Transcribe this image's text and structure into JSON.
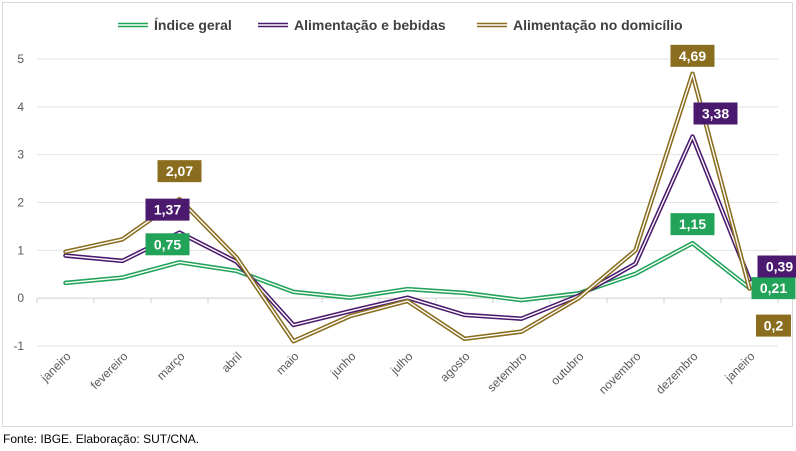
{
  "chart_data": {
    "type": "line",
    "title": "",
    "xlabel": "",
    "ylabel": "",
    "ylim": [
      -1,
      5
    ],
    "yticks": [
      "-1",
      "0",
      "1",
      "2",
      "3",
      "4",
      "5"
    ],
    "categories": [
      "janeiro",
      "fevereiro",
      "março",
      "abril",
      "maio",
      "junho",
      "julho",
      "agosto",
      "setembro",
      "outubro",
      "novembro",
      "dezembro",
      "janeiro"
    ],
    "legend_position": "top",
    "series": [
      {
        "name": "Índice geral",
        "color": "#22a35a",
        "values": [
          0.32,
          0.43,
          0.75,
          0.57,
          0.13,
          0.01,
          0.19,
          0.11,
          -0.04,
          0.1,
          0.51,
          1.15,
          0.21
        ],
        "labels": [
          {
            "index": 2,
            "text": "0,75"
          },
          {
            "index": 11,
            "text": "1,15"
          },
          {
            "index": 12,
            "text": "0,21"
          }
        ]
      },
      {
        "name": "Alimentação e bebidas",
        "color": "#4b1a6e",
        "values": [
          0.89,
          0.78,
          1.37,
          0.76,
          -0.56,
          -0.27,
          0.01,
          -0.35,
          -0.43,
          0.05,
          0.72,
          3.38,
          0.39
        ],
        "labels": [
          {
            "index": 2,
            "text": "1,37"
          },
          {
            "index": 11,
            "text": "3,38"
          },
          {
            "index": 12,
            "text": "0,39"
          }
        ]
      },
      {
        "name": "Alimentação no domicílio",
        "color": "#8a6d1e",
        "values": [
          0.97,
          1.23,
          2.07,
          0.85,
          -0.9,
          -0.37,
          -0.06,
          -0.85,
          -0.7,
          0.0,
          1.0,
          4.69,
          0.2
        ],
        "labels": [
          {
            "index": 2,
            "text": "2,07"
          },
          {
            "index": 11,
            "text": "4,69"
          },
          {
            "index": 12,
            "text": "0,2"
          }
        ]
      }
    ]
  },
  "footer": {
    "source": "Fonte: IBGE. Elaboração: SUT/CNA."
  }
}
